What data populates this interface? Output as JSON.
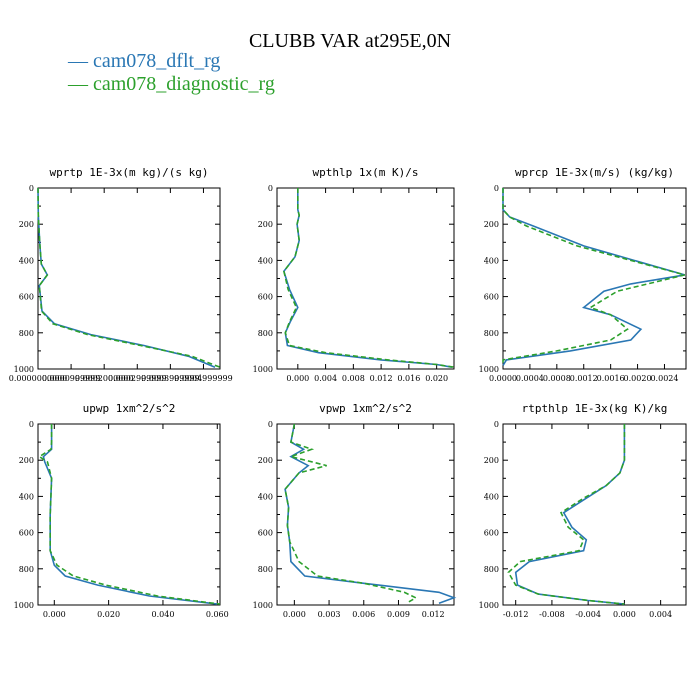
{
  "page": {
    "title": "CLUBB VAR at295E,0N",
    "legend": [
      {
        "label": "cam078_dflt_rg",
        "color": "#2a77b4"
      },
      {
        "label": "cam078_diagnostic_rg",
        "color": "#2ca02c"
      }
    ]
  },
  "chart_data": [
    {
      "type": "line",
      "title": "wprtp  1E-3x(m kg)/(s kg)",
      "xlim": [
        0.0,
        0.00055
      ],
      "ylim": [
        1000,
        0
      ],
      "yticks": [
        0,
        200,
        400,
        600,
        800,
        1000
      ],
      "xticks": [
        0.0,
        0.0001,
        0.0002,
        0.0003,
        0.0004,
        0.0005
      ],
      "xticklabels": [
        "0.0000000000",
        "0.0000999999",
        "0.0002000000",
        "0.0002999999",
        "0.0003999999",
        "0.0004999999"
      ],
      "series": [
        {
          "name": "cam078_dflt_rg",
          "x": [
            0.0,
            1e-06,
            5e-06,
            1e-05,
            2.8e-05,
            4e-06,
            1.2e-05,
            5e-05,
            0.00016,
            0.00032,
            0.000455,
            0.000535
          ],
          "y": [
            0,
            150,
            300,
            420,
            480,
            540,
            680,
            750,
            810,
            870,
            930,
            990
          ]
        },
        {
          "name": "cam078_diagnostic_rg",
          "x": [
            0.0,
            1e-06,
            5e-06,
            1e-05,
            2.8e-05,
            4e-06,
            1.1e-05,
            4.5e-05,
            0.00015,
            0.00031,
            0.000465,
            0.00055
          ],
          "y": [
            0,
            150,
            300,
            420,
            480,
            540,
            680,
            750,
            810,
            870,
            930,
            990
          ]
        }
      ]
    },
    {
      "type": "line",
      "title": "wpthlp  1x(m K)/s",
      "xlim": [
        -0.003,
        0.0225
      ],
      "ylim": [
        1000,
        0
      ],
      "yticks": [
        0,
        200,
        400,
        600,
        800,
        1000
      ],
      "xticks": [
        0.0,
        0.004,
        0.008,
        0.012,
        0.016,
        0.02
      ],
      "xticklabels": [
        "0.000",
        "0.004",
        "0.008",
        "0.012",
        "0.016",
        "0.020"
      ],
      "series": [
        {
          "name": "cam078_dflt_rg",
          "x": [
            0.0,
            0.0,
            0.0002,
            -0.0001,
            0.0002,
            -0.0004,
            -0.002,
            -0.0012,
            0.0,
            -0.0011,
            -0.0018,
            -0.0015,
            0.003,
            0.012,
            0.02,
            0.0222
          ],
          "y": [
            0,
            120,
            150,
            200,
            290,
            380,
            460,
            560,
            660,
            740,
            800,
            870,
            910,
            950,
            975,
            990
          ]
        },
        {
          "name": "cam078_diagnostic_rg",
          "x": [
            0.0,
            0.0,
            0.0002,
            -0.0001,
            0.0002,
            -0.0004,
            -0.002,
            -0.0014,
            -0.0002,
            -0.0012,
            -0.0018,
            -0.0012,
            0.004,
            0.013,
            0.02,
            0.0225
          ],
          "y": [
            0,
            120,
            150,
            200,
            290,
            380,
            460,
            560,
            660,
            740,
            800,
            870,
            910,
            950,
            975,
            990
          ]
        }
      ]
    },
    {
      "type": "line",
      "title": "wprcp  1E-3x(m/s) (kg/kg)",
      "xlim": [
        0.0,
        0.00272
      ],
      "ylim": [
        1000,
        0
      ],
      "yticks": [
        0,
        200,
        400,
        600,
        800,
        1000
      ],
      "xticks": [
        0.0,
        0.0004,
        0.0008,
        0.0012,
        0.0016,
        0.002,
        0.0024
      ],
      "xticklabels": [
        "0.0000",
        "0.0004",
        "0.0008",
        "0.0012",
        "0.0016",
        "0.0020",
        "0.0024"
      ],
      "series": [
        {
          "name": "cam078_dflt_rg",
          "x": [
            0.0,
            0.0,
            0.0001,
            0.00045,
            0.0012,
            0.0027,
            0.0019,
            0.0015,
            0.0012,
            0.0016,
            0.00205,
            0.0019,
            0.001,
            5e-05,
            0.0
          ],
          "y": [
            0,
            120,
            160,
            210,
            320,
            480,
            530,
            570,
            660,
            700,
            780,
            840,
            900,
            950,
            980
          ]
        },
        {
          "name": "cam078_diagnostic_rg",
          "x": [
            0.0,
            0.0,
            0.0001,
            0.00035,
            0.0011,
            0.0027,
            0.00215,
            0.0017,
            0.0013,
            0.0016,
            0.00185,
            0.0016,
            0.0008,
            0.0,
            0.0
          ],
          "y": [
            0,
            120,
            160,
            210,
            320,
            480,
            530,
            570,
            660,
            700,
            780,
            840,
            900,
            950,
            980
          ]
        }
      ]
    },
    {
      "type": "line",
      "title": "upwp  1xm^2/s^2",
      "xlim": [
        -0.006,
        0.061
      ],
      "ylim": [
        1000,
        0
      ],
      "yticks": [
        0,
        200,
        400,
        600,
        800,
        1000
      ],
      "xticks": [
        0.0,
        0.02,
        0.04,
        0.06
      ],
      "xticklabels": [
        "0.000",
        "0.020",
        "0.040",
        "0.060"
      ],
      "series": [
        {
          "name": "cam078_dflt_rg",
          "x": [
            -0.001,
            -0.001,
            -0.001,
            -0.004,
            -0.0035,
            -0.001,
            -0.0015,
            -0.0015,
            0.0,
            0.004,
            0.016,
            0.035,
            0.06
          ],
          "y": [
            0,
            100,
            140,
            180,
            210,
            300,
            500,
            700,
            780,
            840,
            890,
            950,
            995
          ]
        },
        {
          "name": "cam078_diagnostic_rg",
          "x": [
            -0.001,
            -0.001,
            -0.0012,
            -0.0055,
            -0.0025,
            -0.001,
            -0.0015,
            -0.0015,
            0.001,
            0.007,
            0.019,
            0.038,
            0.061
          ],
          "y": [
            0,
            100,
            140,
            180,
            210,
            300,
            500,
            700,
            780,
            840,
            890,
            950,
            995
          ]
        }
      ]
    },
    {
      "type": "line",
      "title": "vpwp  1xm^2/s^2",
      "xlim": [
        -0.0015,
        0.0138
      ],
      "ylim": [
        1000,
        0
      ],
      "yticks": [
        0,
        200,
        400,
        600,
        800,
        1000
      ],
      "xticks": [
        0.0,
        0.003,
        0.006,
        0.009,
        0.012
      ],
      "xticklabels": [
        "0.000",
        "0.003",
        "0.006",
        "0.009",
        "0.012"
      ],
      "series": [
        {
          "name": "cam078_dflt_rg",
          "x": [
            0.0,
            -0.0003,
            0.0008,
            -0.0003,
            0.0012,
            0.0004,
            -0.0008,
            -0.0005,
            -0.0006,
            -0.0004,
            -0.0003,
            0.0009,
            0.006,
            0.0125,
            0.0138,
            0.0125
          ],
          "y": [
            0,
            100,
            140,
            180,
            230,
            270,
            360,
            460,
            560,
            650,
            760,
            840,
            880,
            930,
            960,
            990
          ]
        },
        {
          "name": "cam078_diagnostic_rg",
          "x": [
            0.0,
            -0.0003,
            0.0015,
            -0.0003,
            0.0028,
            0.0004,
            -0.0008,
            -0.0005,
            -0.0006,
            -0.0004,
            0.0004,
            0.002,
            0.006,
            0.0095,
            0.0105,
            0.0097
          ],
          "y": [
            0,
            100,
            140,
            180,
            230,
            270,
            360,
            460,
            560,
            650,
            760,
            840,
            880,
            930,
            960,
            990
          ]
        }
      ]
    },
    {
      "type": "line",
      "title": "rtpthlp  1E-3x(kg K)/kg",
      "xlim": [
        -0.0134,
        0.0068
      ],
      "ylim": [
        1000,
        0
      ],
      "yticks": [
        0,
        200,
        400,
        600,
        800,
        1000
      ],
      "xticks": [
        -0.012,
        -0.008,
        -0.004,
        0.0,
        0.004
      ],
      "xticklabels": [
        "-0.012",
        "-0.008",
        "-0.004",
        "0.000",
        "0.004"
      ],
      "series": [
        {
          "name": "cam078_dflt_rg",
          "x": [
            0.0,
            0.0,
            -0.0005,
            -0.002,
            -0.0042,
            -0.0067,
            -0.0058,
            -0.0042,
            -0.0045,
            -0.0105,
            -0.012,
            -0.0118,
            -0.0095,
            -0.004,
            0.0
          ],
          "y": [
            0,
            200,
            270,
            340,
            410,
            490,
            570,
            640,
            700,
            760,
            820,
            890,
            940,
            975,
            995
          ]
        },
        {
          "name": "cam078_diagnostic_rg",
          "x": [
            0.0,
            0.0,
            -0.0005,
            -0.002,
            -0.0045,
            -0.007,
            -0.0062,
            -0.0045,
            -0.005,
            -0.0115,
            -0.0128,
            -0.012,
            -0.0095,
            -0.004,
            0.0
          ],
          "y": [
            0,
            200,
            270,
            340,
            410,
            490,
            570,
            640,
            700,
            760,
            820,
            890,
            940,
            975,
            995
          ]
        }
      ]
    }
  ]
}
